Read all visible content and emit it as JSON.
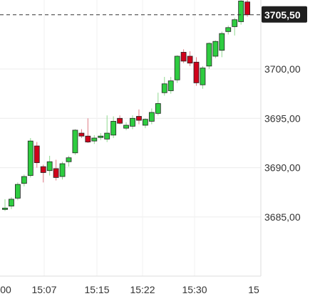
{
  "chart_data": {
    "type": "candlestick",
    "title": "",
    "xlabel": "",
    "ylabel": "",
    "ylim": [
      3679.0,
      3707.0
    ],
    "grid": true,
    "y_ticks": [
      "3685,00",
      "3690,00",
      "3695,00",
      "3700,00"
    ],
    "x_ticks": [
      "00",
      "15:07",
      "15:15",
      "15:22",
      "15:30",
      "15"
    ],
    "last_price": 3705.5,
    "last_price_label": "3705,50",
    "colors": {
      "up": "#2ecc40",
      "down": "#d0021b",
      "border": "#222222"
    },
    "candles": [
      {
        "o": 3685.9,
        "h": 3686.8,
        "l": 3685.6,
        "c": 3685.9
      },
      {
        "o": 3686.1,
        "h": 3687.0,
        "l": 3685.8,
        "c": 3686.8
      },
      {
        "o": 3686.9,
        "h": 3688.5,
        "l": 3686.7,
        "c": 3688.3
      },
      {
        "o": 3688.4,
        "h": 3689.3,
        "l": 3688.1,
        "c": 3689.1
      },
      {
        "o": 3689.2,
        "h": 3693.0,
        "l": 3689.0,
        "c": 3692.7
      },
      {
        "o": 3692.2,
        "h": 3692.6,
        "l": 3690.0,
        "c": 3690.5
      },
      {
        "o": 3690.1,
        "h": 3690.3,
        "l": 3688.5,
        "c": 3689.5
      },
      {
        "o": 3689.7,
        "h": 3691.2,
        "l": 3689.2,
        "c": 3690.6
      },
      {
        "o": 3689.9,
        "h": 3690.8,
        "l": 3688.7,
        "c": 3689.0
      },
      {
        "o": 3689.1,
        "h": 3690.6,
        "l": 3688.8,
        "c": 3690.4
      },
      {
        "o": 3690.6,
        "h": 3691.2,
        "l": 3690.1,
        "c": 3691.0
      },
      {
        "o": 3691.5,
        "h": 3693.9,
        "l": 3691.3,
        "c": 3693.8
      },
      {
        "o": 3693.5,
        "h": 3693.9,
        "l": 3693.0,
        "c": 3693.2
      },
      {
        "o": 3693.2,
        "h": 3695.0,
        "l": 3692.5,
        "c": 3692.6
      },
      {
        "o": 3692.7,
        "h": 3693.3,
        "l": 3692.4,
        "c": 3693.0
      },
      {
        "o": 3693.1,
        "h": 3693.5,
        "l": 3692.8,
        "c": 3693.2
      },
      {
        "o": 3692.9,
        "h": 3695.3,
        "l": 3692.6,
        "c": 3693.5
      },
      {
        "o": 3693.3,
        "h": 3695.2,
        "l": 3693.0,
        "c": 3694.7
      },
      {
        "o": 3695.0,
        "h": 3695.3,
        "l": 3694.4,
        "c": 3694.5
      },
      {
        "o": 3694.0,
        "h": 3694.6,
        "l": 3693.8,
        "c": 3694.3
      },
      {
        "o": 3694.2,
        "h": 3695.3,
        "l": 3693.9,
        "c": 3695.0
      },
      {
        "o": 3695.2,
        "h": 3695.9,
        "l": 3694.4,
        "c": 3694.8
      },
      {
        "o": 3694.3,
        "h": 3695.0,
        "l": 3694.0,
        "c": 3694.9
      },
      {
        "o": 3694.7,
        "h": 3696.0,
        "l": 3694.4,
        "c": 3695.6
      },
      {
        "o": 3695.5,
        "h": 3697.6,
        "l": 3695.3,
        "c": 3696.5
      },
      {
        "o": 3697.6,
        "h": 3699.2,
        "l": 3697.3,
        "c": 3698.5
      },
      {
        "o": 3697.8,
        "h": 3699.2,
        "l": 3697.5,
        "c": 3698.8
      },
      {
        "o": 3698.9,
        "h": 3701.4,
        "l": 3698.6,
        "c": 3701.3
      },
      {
        "o": 3701.7,
        "h": 3702.0,
        "l": 3700.6,
        "c": 3700.8
      },
      {
        "o": 3701.3,
        "h": 3701.8,
        "l": 3700.3,
        "c": 3700.6
      },
      {
        "o": 3700.7,
        "h": 3701.2,
        "l": 3698.3,
        "c": 3698.6
      },
      {
        "o": 3698.4,
        "h": 3700.3,
        "l": 3698.0,
        "c": 3700.1
      },
      {
        "o": 3700.3,
        "h": 3702.7,
        "l": 3700.0,
        "c": 3702.6
      },
      {
        "o": 3701.3,
        "h": 3702.9,
        "l": 3701.1,
        "c": 3702.8
      },
      {
        "o": 3701.9,
        "h": 3703.8,
        "l": 3701.2,
        "c": 3703.6
      },
      {
        "o": 3703.8,
        "h": 3704.4,
        "l": 3703.5,
        "c": 3704.2
      },
      {
        "o": 3704.3,
        "h": 3705.2,
        "l": 3703.4,
        "c": 3705.0
      },
      {
        "o": 3704.8,
        "h": 3707.0,
        "l": 3704.5,
        "c": 3706.9
      },
      {
        "o": 3706.8,
        "h": 3707.0,
        "l": 3705.3,
        "c": 3705.5
      }
    ]
  }
}
